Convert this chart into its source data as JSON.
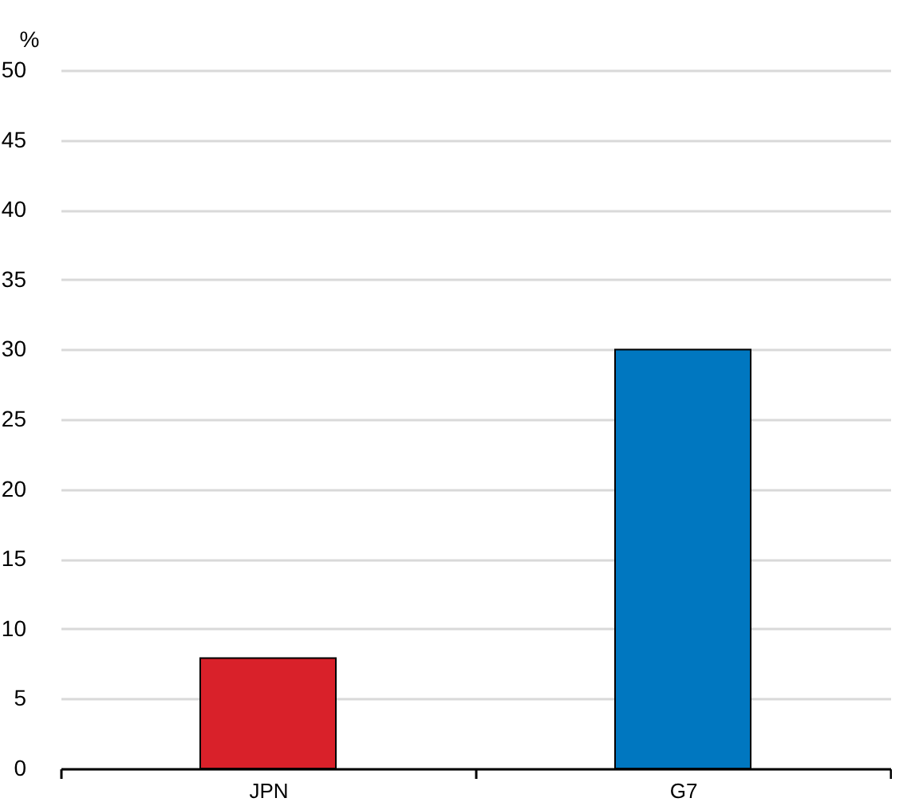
{
  "chart_data": {
    "type": "bar",
    "ylabel": "%",
    "categories": [
      "JPN",
      "G7"
    ],
    "values": [
      7.9,
      30
    ],
    "colors": [
      "#d9212a",
      "#0077c0"
    ],
    "ylim": [
      0,
      50
    ],
    "yticks": [
      0,
      5,
      10,
      15,
      20,
      25,
      30,
      35,
      40,
      45,
      50
    ],
    "grid": "y"
  }
}
